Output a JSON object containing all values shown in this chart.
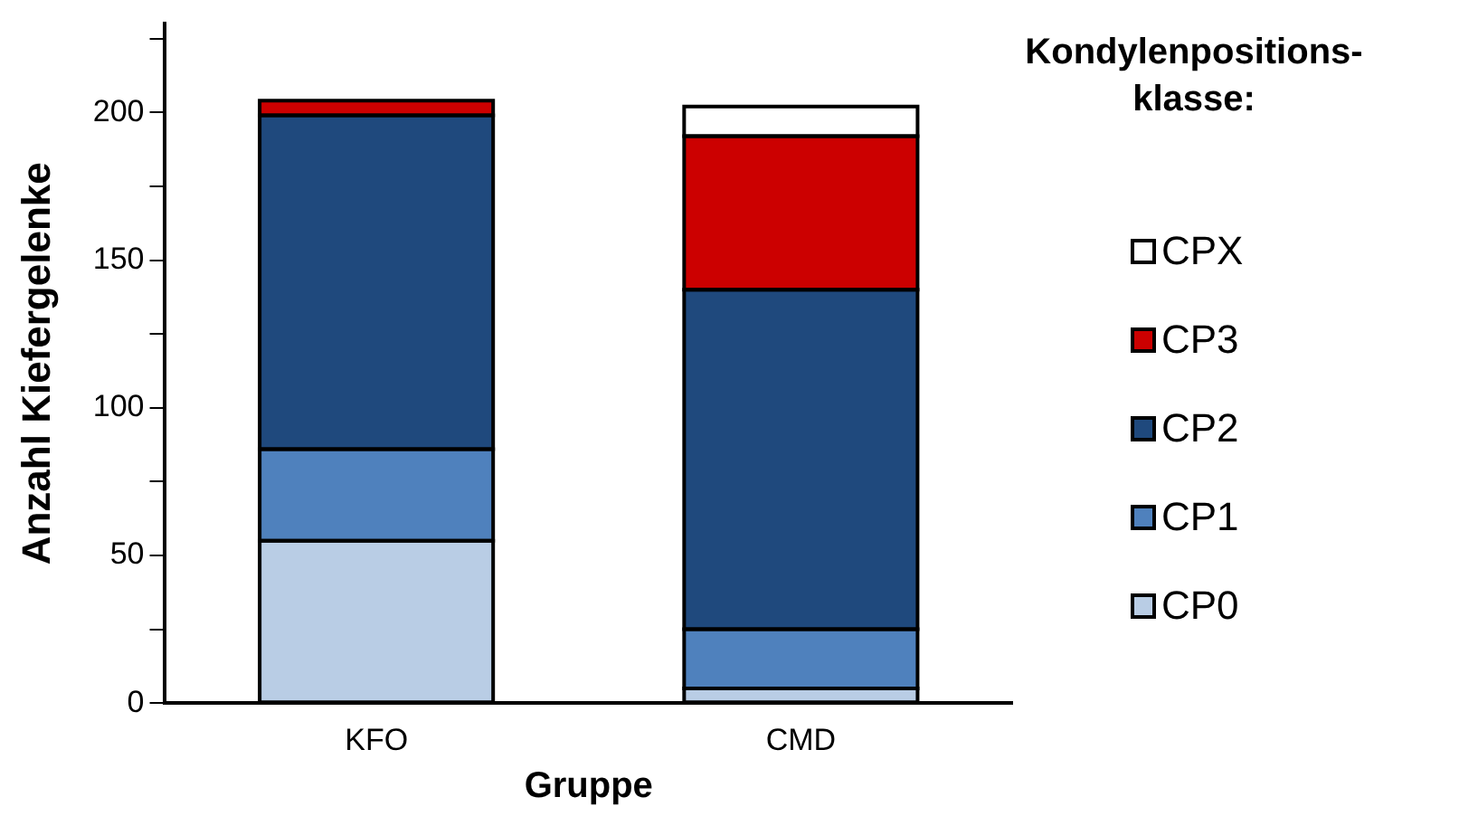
{
  "chart_data": {
    "type": "bar",
    "stacked": true,
    "xlabel": "Gruppe",
    "ylabel": "Anzahl Kiefergelenke",
    "legend_title": "Kondylenpositions-klasse:",
    "legend": "right",
    "categories": [
      "KFO",
      "CMD"
    ],
    "series": [
      {
        "name": "CP0",
        "color": "#b9cde5",
        "values": [
          55,
          5
        ]
      },
      {
        "name": "CP1",
        "color": "#4f81bd",
        "values": [
          31,
          20
        ]
      },
      {
        "name": "CP2",
        "color": "#1f497d",
        "values": [
          113,
          115
        ]
      },
      {
        "name": "CP3",
        "color": "#cc0000",
        "values": [
          5,
          52
        ]
      },
      {
        "name": "CPX",
        "color": "#ffffff",
        "values": [
          0,
          10
        ]
      }
    ],
    "ylim": [
      0,
      230
    ],
    "yticks": [
      0,
      {
        "value": 25,
        "label": null
      },
      50,
      {
        "value": 75,
        "label": null
      },
      100,
      {
        "value": 125,
        "label": null
      },
      150,
      {
        "value": 175,
        "label": null
      },
      200,
      {
        "value": 225,
        "label": null
      }
    ],
    "grid": false
  }
}
